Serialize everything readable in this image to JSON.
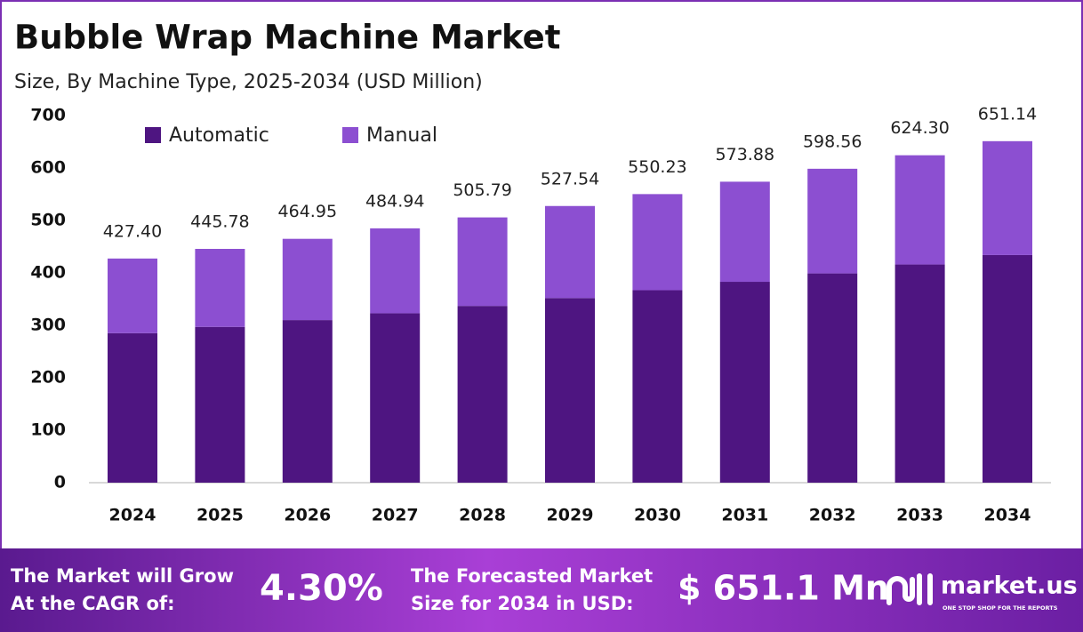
{
  "chart_data": {
    "type": "stacked_bar",
    "title": "Bubble Wrap Machine Market",
    "subtitle": "Size, By Machine Type, 2025-2034 (USD Million)",
    "categories": [
      "2024",
      "2025",
      "2026",
      "2027",
      "2028",
      "2029",
      "2030",
      "2031",
      "2032",
      "2033",
      "2034"
    ],
    "series": [
      {
        "name": "Automatic",
        "color": "#4e1581",
        "values": [
          285,
          297,
          310,
          323,
          337,
          352,
          367,
          383,
          399,
          416,
          434
        ]
      },
      {
        "name": "Manual",
        "color": "#8c4fd1",
        "values": [
          142.4,
          148.78,
          154.95,
          161.94,
          168.79,
          175.54,
          183.23,
          190.88,
          199.56,
          208.3,
          217.14
        ]
      }
    ],
    "totals": [
      427.4,
      445.78,
      464.95,
      484.94,
      505.79,
      527.54,
      550.23,
      573.88,
      598.56,
      624.3,
      651.14
    ],
    "total_labels": [
      "427.40",
      "445.78",
      "464.95",
      "484.94",
      "505.79",
      "527.54",
      "550.23",
      "573.88",
      "598.56",
      "624.30",
      "651.14"
    ],
    "ylim": [
      0,
      700
    ],
    "yticks": [
      0,
      100,
      200,
      300,
      400,
      500,
      600,
      700
    ],
    "grid": false,
    "legend": "top-left"
  },
  "footer": {
    "cagr_text": [
      "The Market will Grow",
      "At the CAGR of:"
    ],
    "cagr_value": "4.30%",
    "forecast_text": [
      "The Forecasted Market",
      "Size for 2034 in USD:"
    ],
    "forecast_value": "$ 651.1 Mn",
    "brand": "market.us",
    "tagline": "ONE STOP SHOP FOR THE REPORTS"
  }
}
